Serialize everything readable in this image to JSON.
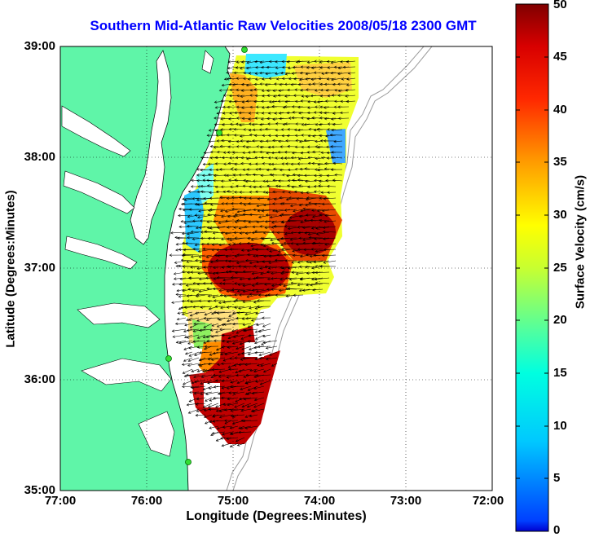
{
  "title": "Southern Mid-Atlantic Raw Velocities 2008/05/18 2300 GMT",
  "axes": {
    "xlabel": "Longitude (Degrees:Minutes)",
    "ylabel": "Latitude (Degrees:Minutes)",
    "x_ticks": [
      "77:00",
      "76:00",
      "75:00",
      "74:00",
      "73:00",
      "72:00"
    ],
    "y_ticks": [
      "39:00",
      "38:00",
      "37:00",
      "36:00",
      "35:00"
    ],
    "x_range": [
      -77,
      -72
    ],
    "y_range": [
      35,
      39
    ],
    "grid": "dotted"
  },
  "colorbar": {
    "label": "Surface Velocity (cm/s)",
    "ticks": [
      "50",
      "45",
      "40",
      "35",
      "30",
      "25",
      "20",
      "15",
      "10",
      "5",
      "0"
    ],
    "range": [
      0,
      50
    ],
    "colormap": "jet"
  },
  "colors": {
    "land": "#5ff5a8",
    "title": "#0000ff",
    "station": "#33dd33"
  }
}
